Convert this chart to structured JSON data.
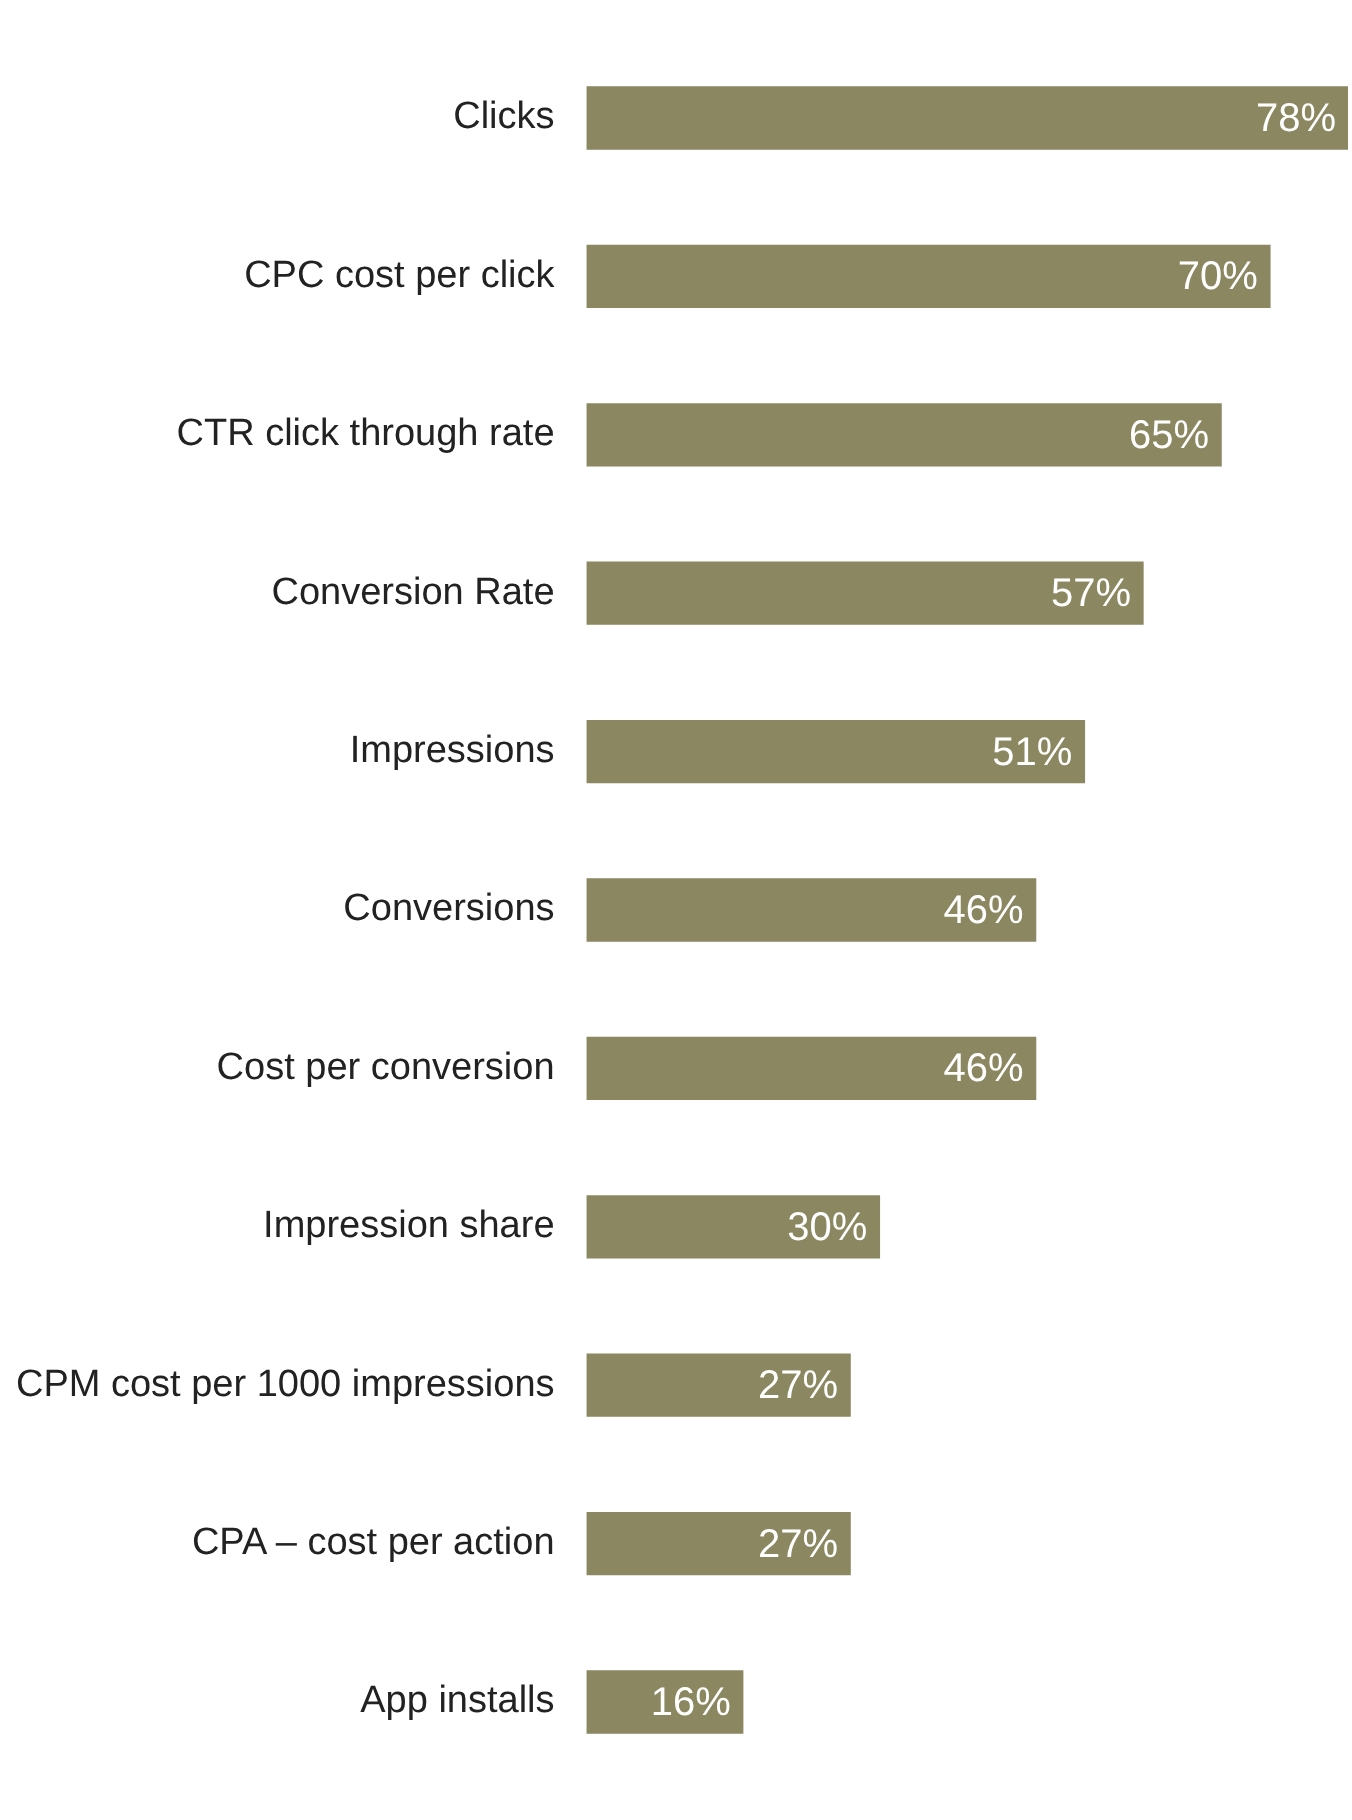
{
  "chart_data": {
    "type": "bar",
    "orientation": "horizontal",
    "categories": [
      "Clicks",
      "CPC cost per click",
      "CTR click through rate",
      "Conversion Rate",
      "Impressions",
      "Conversions",
      "Cost per conversion",
      "Impression share",
      "CPM cost per 1000 impressions",
      "CPA – cost per action",
      "App installs"
    ],
    "values": [
      78,
      70,
      65,
      57,
      51,
      46,
      46,
      30,
      27,
      27,
      16
    ],
    "value_labels": [
      "78%",
      "70%",
      "65%",
      "57%",
      "51%",
      "46%",
      "46%",
      "30%",
      "27%",
      "27%",
      "16%"
    ],
    "color": "#8a8761",
    "xlim": [
      0,
      78
    ],
    "tick_labels": "y",
    "legend": false
  }
}
